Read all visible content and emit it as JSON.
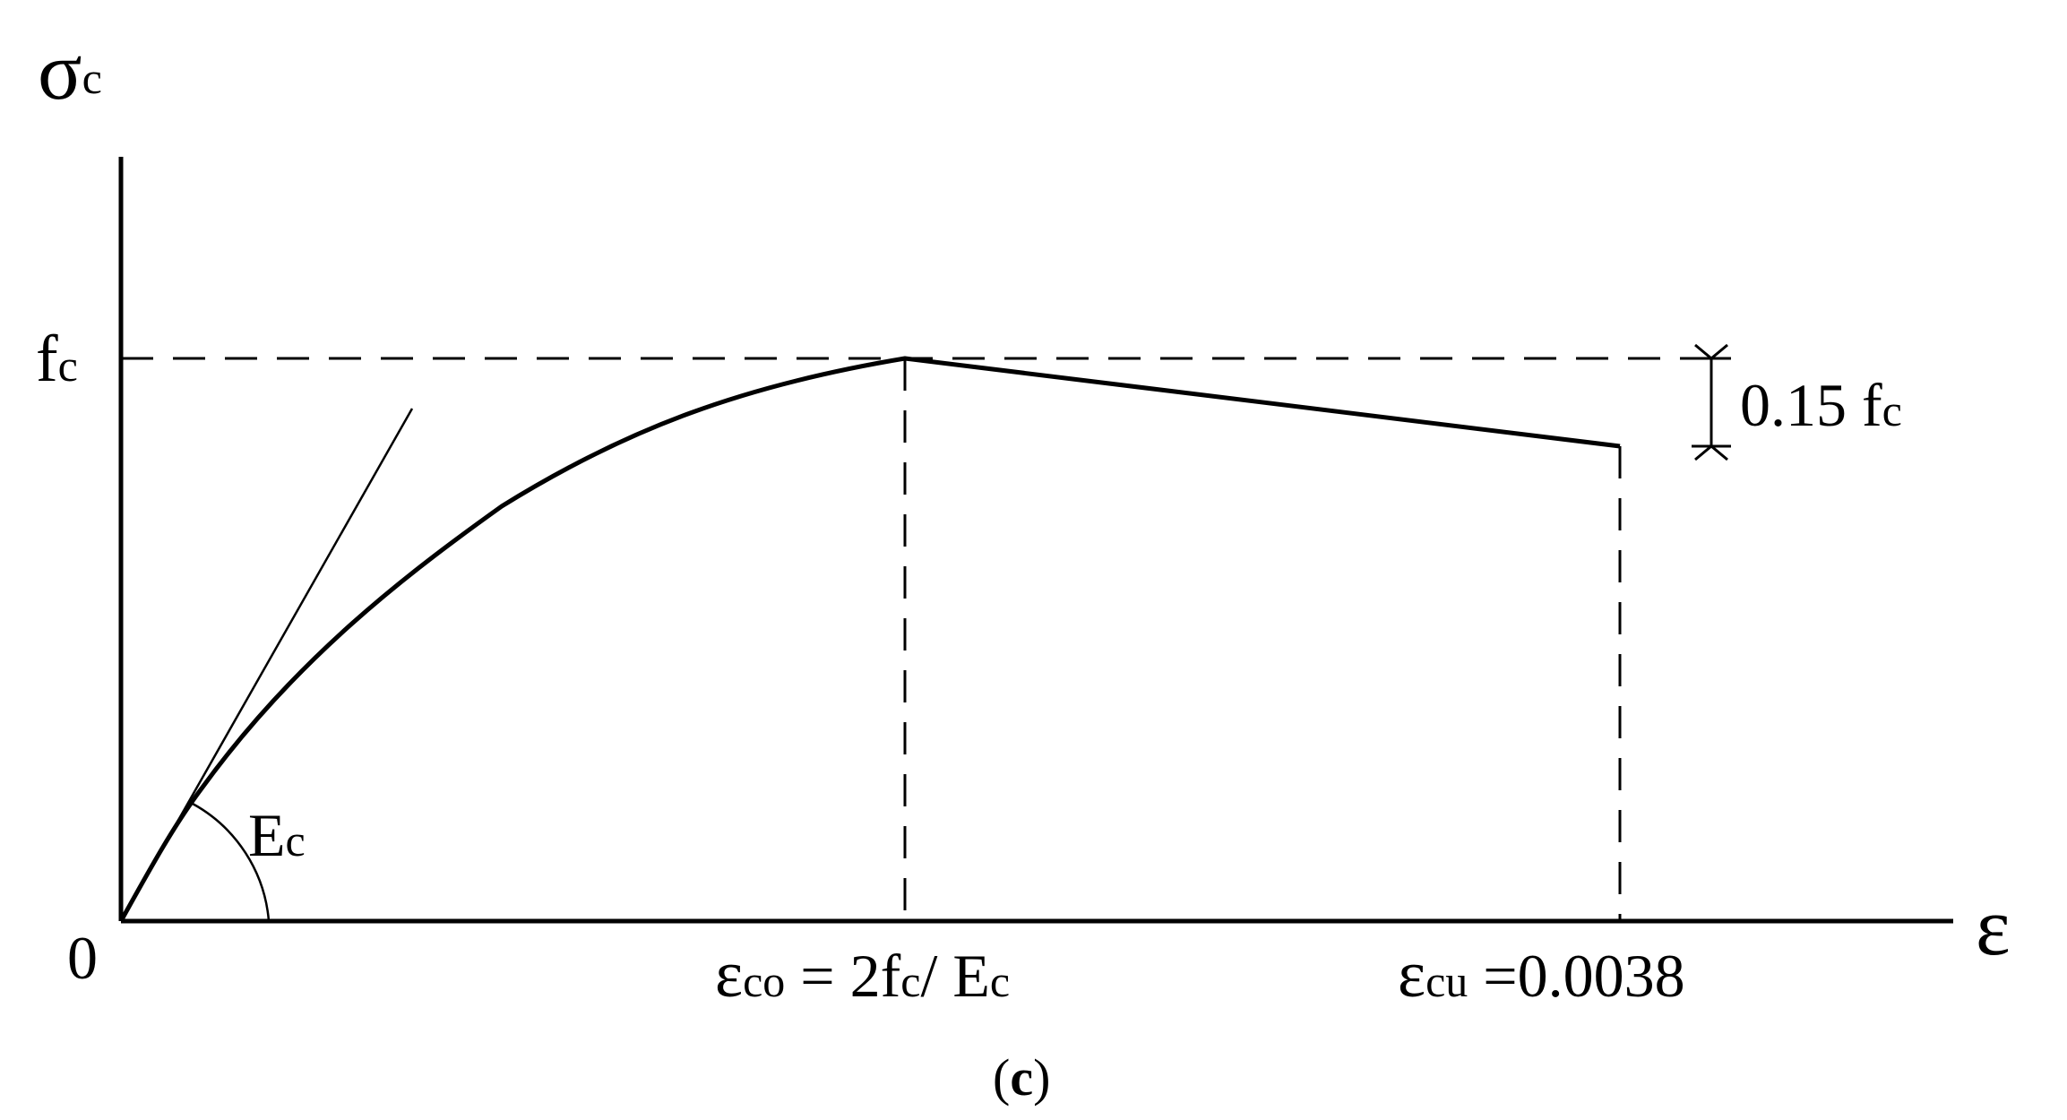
{
  "diagram": {
    "y_axis_label": {
      "main": "σ",
      "sub": "c"
    },
    "x_axis_label": "ε",
    "origin_label": "0",
    "peak_stress_label": {
      "main": "f",
      "sub": "c"
    },
    "modulus_label": {
      "main": "E",
      "sub": "c"
    },
    "drop_label": {
      "value": "0.15 f",
      "sub": "c"
    },
    "peak_strain_label": {
      "main": "ε",
      "sub": "co",
      "eq": " = 2f",
      "sub2": "c",
      "rest": "/ E",
      "sub3": "c"
    },
    "ultimate_strain_label": {
      "main": "ε",
      "sub": "cu",
      "rest": " =0.0038"
    },
    "caption": {
      "open": "(",
      "letter": "c",
      "close": ")"
    }
  },
  "colors": {
    "line": "#000000",
    "background": "#ffffff"
  }
}
